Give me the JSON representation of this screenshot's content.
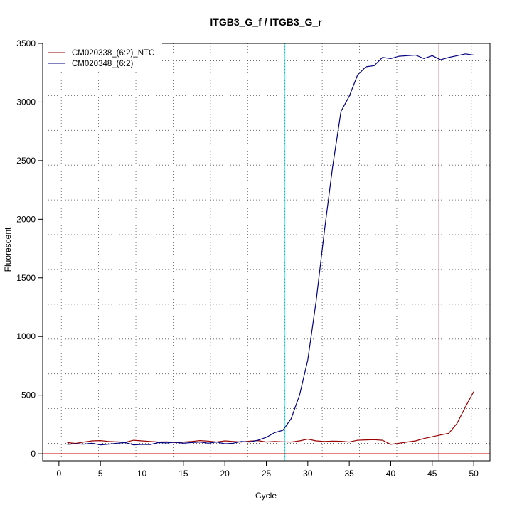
{
  "chart_data": {
    "type": "line",
    "title": "ITGB3_G_f / ITGB3_G_r",
    "xlabel": "Cycle",
    "ylabel": "Fluorescent",
    "xlim": [
      -1.96,
      51.96
    ],
    "ylim": [
      -60,
      3500
    ],
    "x_ticks": [
      0,
      5,
      10,
      15,
      20,
      25,
      30,
      35,
      40,
      45,
      50
    ],
    "y_ticks": [
      0,
      500,
      1000,
      1500,
      2000,
      2500,
      3000,
      3500
    ],
    "x_tick_labels": [
      "0",
      "5",
      "10",
      "15",
      "20",
      "25",
      "30",
      "35",
      "40",
      "45",
      "50"
    ],
    "y_tick_labels": [
      "0",
      "500",
      "1000",
      "1500",
      "2000",
      "2500",
      "3000",
      "3500"
    ],
    "grid": true,
    "legend_position": "top-left",
    "threshold_line": {
      "y": 0,
      "color": "#cc0000"
    },
    "threshold_cycle_lines": [
      {
        "x": 27.2,
        "color": "#00e5ee"
      },
      {
        "x": 45.8,
        "color": "#cd5c5c"
      }
    ],
    "x": [
      1,
      2,
      3,
      4,
      5,
      6,
      7,
      8,
      9,
      10,
      11,
      12,
      13,
      14,
      15,
      16,
      17,
      18,
      19,
      20,
      21,
      22,
      23,
      24,
      25,
      26,
      27,
      28,
      29,
      30,
      31,
      32,
      33,
      34,
      35,
      36,
      37,
      38,
      39,
      40,
      41,
      42,
      43,
      44,
      45,
      46,
      47,
      48,
      49,
      50
    ],
    "series": [
      {
        "name": "CM020338_(6:2)_NTC",
        "color": "#990000",
        "values": [
          95,
          88,
          100,
          110,
          112,
          105,
          102,
          98,
          115,
          110,
          105,
          100,
          102,
          95,
          100,
          105,
          112,
          108,
          100,
          110,
          105,
          100,
          108,
          112,
          100,
          105,
          102,
          100,
          110,
          125,
          110,
          105,
          108,
          106,
          100,
          115,
          118,
          120,
          115,
          80,
          90,
          100,
          110,
          130,
          145,
          160,
          175,
          260,
          400,
          530
        ]
      },
      {
        "name": "CM020348_(6:2)",
        "color": "#000080",
        "values": [
          80,
          85,
          82,
          90,
          75,
          82,
          90,
          95,
          75,
          80,
          78,
          95,
          92,
          98,
          90,
          95,
          100,
          90,
          100,
          85,
          90,
          105,
          100,
          115,
          140,
          180,
          200,
          300,
          500,
          800,
          1300,
          1900,
          2450,
          2920,
          3050,
          3230,
          3300,
          3310,
          3380,
          3370,
          3390,
          3395,
          3400,
          3370,
          3395,
          3360,
          3380,
          3395,
          3410,
          3400
        ]
      }
    ]
  }
}
